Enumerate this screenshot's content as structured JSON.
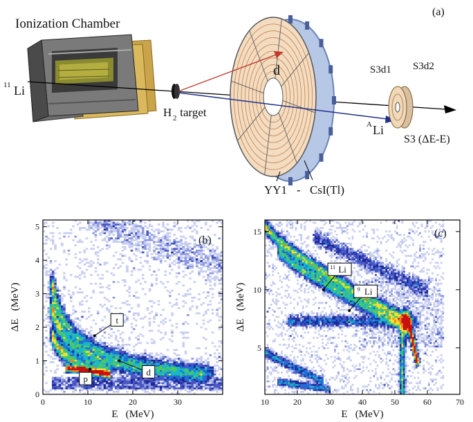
{
  "panel_a": {
    "panel_label": "(a)",
    "chamber_label": "Ionization Chamber",
    "beam_label_sup": "11",
    "beam_label": "Li",
    "target_label": "H",
    "target_sub": "2",
    "target_suffix": " target",
    "deuteron_label": "d",
    "ali_sup": "A",
    "ali_label": "Li",
    "s3d1_label": "S3d1",
    "s3d2_label": "S3d2",
    "s3_label": "S3 (ΔE-E)",
    "yy1_label": "YY1",
    "dash_label": "-",
    "csi_label": "CsI(Tl)"
  },
  "chart_data": [
    {
      "type": "heatmap",
      "panel_label": "(b)",
      "xlabel": "E   (MeV)",
      "ylabel": "ΔE   (MeV)",
      "xlim": [
        0,
        40
      ],
      "ylim": [
        0,
        5.2
      ],
      "xticks": [
        0,
        10,
        20,
        30
      ],
      "yticks": [
        0,
        1,
        2,
        3,
        4,
        5
      ],
      "annotations": [
        {
          "text": "t",
          "x": 16.5,
          "y": 2.2,
          "arrow_to": [
            11.5,
            1.75
          ]
        },
        {
          "text": "d",
          "x": 23.5,
          "y": 0.65,
          "arrow_to": [
            17,
            1.0
          ]
        },
        {
          "text": "p",
          "x": 9.5,
          "y": 0.45,
          "arrow_to": [
            10.5,
            0.75
          ]
        }
      ],
      "bands": [
        {
          "name": "p",
          "E0": 2,
          "E1": 15,
          "dE0": 1.8,
          "dE1": 0.7
        },
        {
          "name": "d",
          "E0": 2,
          "E1": 36,
          "dE0": 2.6,
          "dE1": 0.45
        },
        {
          "name": "t",
          "E0": 2,
          "E1": 38,
          "dE0": 3.3,
          "dE1": 0.75
        }
      ]
    },
    {
      "type": "heatmap",
      "panel_label": "(c)",
      "xlabel": "E   (MeV)",
      "ylabel": "ΔE   (MeV)",
      "xlim": [
        10,
        70
      ],
      "ylim": [
        1,
        16
      ],
      "xticks": [
        10,
        20,
        30,
        40,
        50,
        60,
        70
      ],
      "yticks": [
        5,
        10,
        15
      ],
      "annotations": [
        {
          "text": "Li",
          "sup": "11",
          "x": 33,
          "y": 11.7,
          "arrow_to": [
            28,
            10.0
          ]
        },
        {
          "text": "Li",
          "sup": "9",
          "x": 41,
          "y": 9.8,
          "arrow_to": [
            36,
            8.2
          ]
        }
      ],
      "bands": [
        {
          "name": "11Li",
          "E0": 10,
          "E1": 53,
          "dE0": 15.5,
          "dE1": 7.5
        },
        {
          "name": "9Li",
          "E0": 14,
          "E1": 52,
          "dE0": 13.5,
          "dE1": 7.0
        }
      ]
    }
  ]
}
